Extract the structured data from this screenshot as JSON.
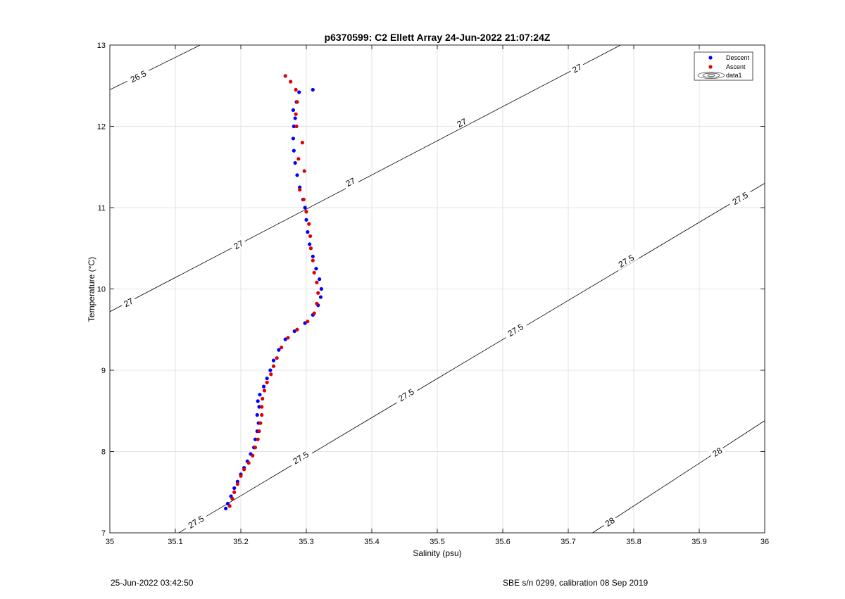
{
  "chart_data": {
    "type": "scatter",
    "title": "p6370599: C2 Ellett Array 24-Jun-2022 21:07:24Z",
    "xlabel": "Salinity (psu)",
    "ylabel": "Temperature (°C)",
    "xlim": [
      35,
      36
    ],
    "ylim": [
      7,
      13
    ],
    "xticks": [
      35,
      35.1,
      35.2,
      35.3,
      35.4,
      35.5,
      35.6,
      35.7,
      35.8,
      35.9,
      36
    ],
    "xtick_labels": [
      "35",
      "35.1",
      "35.2",
      "35.3",
      "35.4",
      "35.5",
      "35.6",
      "35.7",
      "35.8",
      "35.9",
      "36"
    ],
    "yticks": [
      7,
      8,
      9,
      10,
      11,
      12,
      13
    ],
    "ytick_labels": [
      "7",
      "8",
      "9",
      "10",
      "11",
      "12",
      "13"
    ],
    "grid": true,
    "legend_position": "top-right",
    "legend": [
      "Descent",
      "Ascent",
      "data1"
    ],
    "series": [
      {
        "name": "Descent",
        "color": "#0000ff",
        "points": [
          [
            35.177,
            7.3
          ],
          [
            35.18,
            7.36
          ],
          [
            35.185,
            7.45
          ],
          [
            35.19,
            7.55
          ],
          [
            35.195,
            7.63
          ],
          [
            35.2,
            7.72
          ],
          [
            35.205,
            7.8
          ],
          [
            35.21,
            7.88
          ],
          [
            35.215,
            7.97
          ],
          [
            35.22,
            8.05
          ],
          [
            35.222,
            8.15
          ],
          [
            35.225,
            8.25
          ],
          [
            35.227,
            8.35
          ],
          [
            35.225,
            8.45
          ],
          [
            35.228,
            8.55
          ],
          [
            35.226,
            8.62
          ],
          [
            35.229,
            8.7
          ],
          [
            35.235,
            8.8
          ],
          [
            35.24,
            8.9
          ],
          [
            35.245,
            9.0
          ],
          [
            35.25,
            9.12
          ],
          [
            35.258,
            9.25
          ],
          [
            35.268,
            9.38
          ],
          [
            35.282,
            9.48
          ],
          [
            35.298,
            9.58
          ],
          [
            35.31,
            9.68
          ],
          [
            35.318,
            9.8
          ],
          [
            35.322,
            9.9
          ],
          [
            35.323,
            10.0
          ],
          [
            35.32,
            10.12
          ],
          [
            35.315,
            10.25
          ],
          [
            35.31,
            10.4
          ],
          [
            35.305,
            10.55
          ],
          [
            35.302,
            10.7
          ],
          [
            35.3,
            10.85
          ],
          [
            35.298,
            11.0
          ],
          [
            35.295,
            11.1
          ],
          [
            35.29,
            11.25
          ],
          [
            35.286,
            11.4
          ],
          [
            35.283,
            11.55
          ],
          [
            35.281,
            11.7
          ],
          [
            35.28,
            11.85
          ],
          [
            35.281,
            12.0
          ],
          [
            35.283,
            12.1
          ],
          [
            35.28,
            12.2
          ],
          [
            35.285,
            12.3
          ],
          [
            35.289,
            12.42
          ],
          [
            35.31,
            12.45
          ]
        ]
      },
      {
        "name": "Ascent",
        "color": "#e00000",
        "points": [
          [
            35.183,
            7.33
          ],
          [
            35.187,
            7.42
          ],
          [
            35.19,
            7.5
          ],
          [
            35.195,
            7.6
          ],
          [
            35.2,
            7.7
          ],
          [
            35.205,
            7.78
          ],
          [
            35.212,
            7.86
          ],
          [
            35.218,
            7.95
          ],
          [
            35.222,
            8.05
          ],
          [
            35.226,
            8.15
          ],
          [
            35.228,
            8.25
          ],
          [
            35.23,
            8.35
          ],
          [
            35.232,
            8.45
          ],
          [
            35.232,
            8.55
          ],
          [
            35.233,
            8.65
          ],
          [
            35.236,
            8.75
          ],
          [
            35.24,
            8.85
          ],
          [
            35.246,
            8.95
          ],
          [
            35.25,
            9.05
          ],
          [
            35.255,
            9.15
          ],
          [
            35.262,
            9.28
          ],
          [
            35.272,
            9.4
          ],
          [
            35.286,
            9.5
          ],
          [
            35.302,
            9.6
          ],
          [
            35.312,
            9.7
          ],
          [
            35.316,
            9.82
          ],
          [
            35.318,
            9.95
          ],
          [
            35.316,
            10.08
          ],
          [
            35.312,
            10.2
          ],
          [
            35.31,
            10.35
          ],
          [
            35.307,
            10.5
          ],
          [
            35.306,
            10.65
          ],
          [
            35.304,
            10.8
          ],
          [
            35.3,
            10.95
          ],
          [
            35.296,
            11.1
          ],
          [
            35.29,
            11.22
          ],
          [
            35.297,
            11.45
          ],
          [
            35.288,
            11.6
          ],
          [
            35.294,
            11.8
          ],
          [
            35.285,
            12.0
          ],
          [
            35.284,
            12.15
          ],
          [
            35.286,
            12.3
          ],
          [
            35.284,
            12.45
          ],
          [
            35.276,
            12.55
          ],
          [
            35.268,
            12.62
          ]
        ]
      }
    ],
    "isopycnals": [
      {
        "label": "26.5",
        "points": [
          [
            35.0,
            12.45
          ],
          [
            35.138,
            13.0
          ]
        ],
        "label_positions": [
          [
            35.043,
            12.62
          ]
        ]
      },
      {
        "label": "27",
        "points": [
          [
            35.0,
            9.72
          ],
          [
            35.78,
            13.0
          ]
        ],
        "label_positions": [
          [
            35.028,
            9.84
          ],
          [
            35.196,
            10.55
          ],
          [
            35.367,
            11.32
          ],
          [
            35.537,
            12.05
          ],
          [
            35.713,
            12.72
          ]
        ]
      },
      {
        "label": "27.5",
        "points": [
          [
            35.105,
            7.0
          ],
          [
            36.0,
            11.3
          ]
        ],
        "label_positions": [
          [
            35.131,
            7.14
          ],
          [
            35.291,
            7.93
          ],
          [
            35.452,
            8.7
          ],
          [
            35.619,
            9.5
          ],
          [
            35.788,
            10.35
          ],
          [
            35.962,
            11.12
          ]
        ]
      },
      {
        "label": "28",
        "points": [
          [
            35.737,
            7.0
          ],
          [
            36.0,
            8.38
          ]
        ],
        "label_positions": [
          [
            35.763,
            7.14
          ],
          [
            35.927,
            8.0
          ]
        ]
      }
    ]
  },
  "footer": {
    "timestamp": "25-Jun-2022 03:42:50",
    "calibration": "SBE s/n 0299, calibration 08 Sep 2019"
  }
}
